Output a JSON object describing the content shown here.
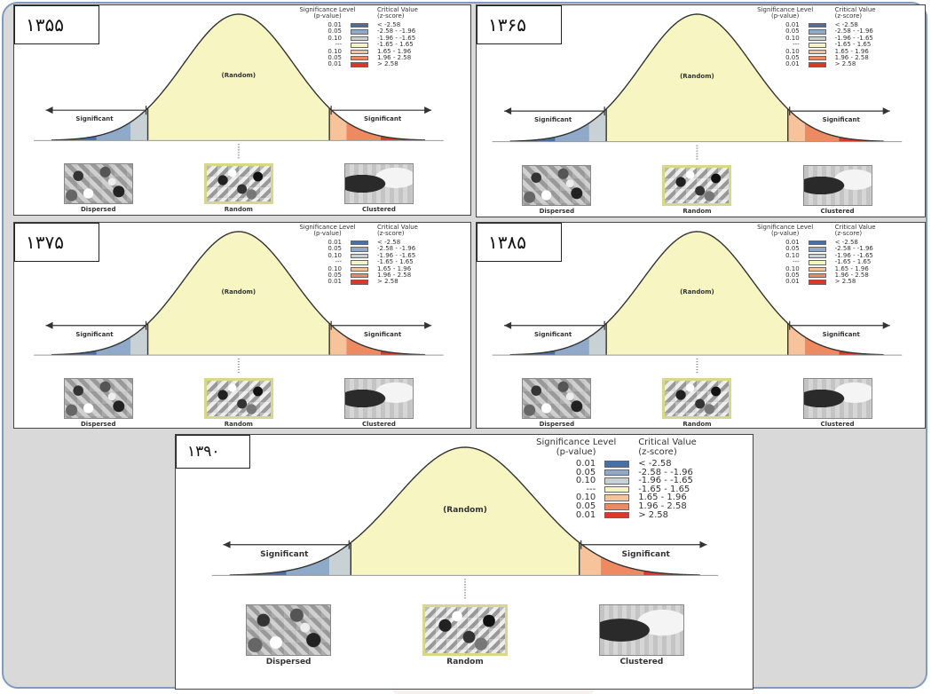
{
  "legend": {
    "header_significance": "Significance Level",
    "header_pvalue": "(p-value)",
    "header_critical": "Critical Value",
    "header_zscore": "(z-score)",
    "rows": [
      {
        "p": "0.01",
        "z": "< -2.58",
        "color": "#4a6fa5"
      },
      {
        "p": "0.05",
        "z": "-2.58 - -1.96",
        "color": "#8fa9c9"
      },
      {
        "p": "0.10",
        "z": "-1.96 - -1.65",
        "color": "#c8d2d4"
      },
      {
        "p": "---",
        "z": "-1.65 - 1.65",
        "color": "#f7f5c2"
      },
      {
        "p": "0.10",
        "z": "1.65 - 1.96",
        "color": "#f6c39a"
      },
      {
        "p": "0.05",
        "z": "1.96 - 2.58",
        "color": "#ee8a62"
      },
      {
        "p": "0.01",
        "z": "> 2.58",
        "color": "#d9382a"
      }
    ]
  },
  "curve_labels": {
    "random": "(Random)",
    "significant_left": "Significant",
    "significant_right": "Significant",
    "dispersed": "Dispersed",
    "random_map": "Random",
    "clustered": "Clustered"
  },
  "panels": [
    {
      "year": "۱۳۵۵"
    },
    {
      "year": "۱۳۶۵"
    },
    {
      "year": "۱۳۷۵"
    },
    {
      "year": "۱۳۸۵"
    },
    {
      "year": "۱۳۹۰"
    }
  ]
}
